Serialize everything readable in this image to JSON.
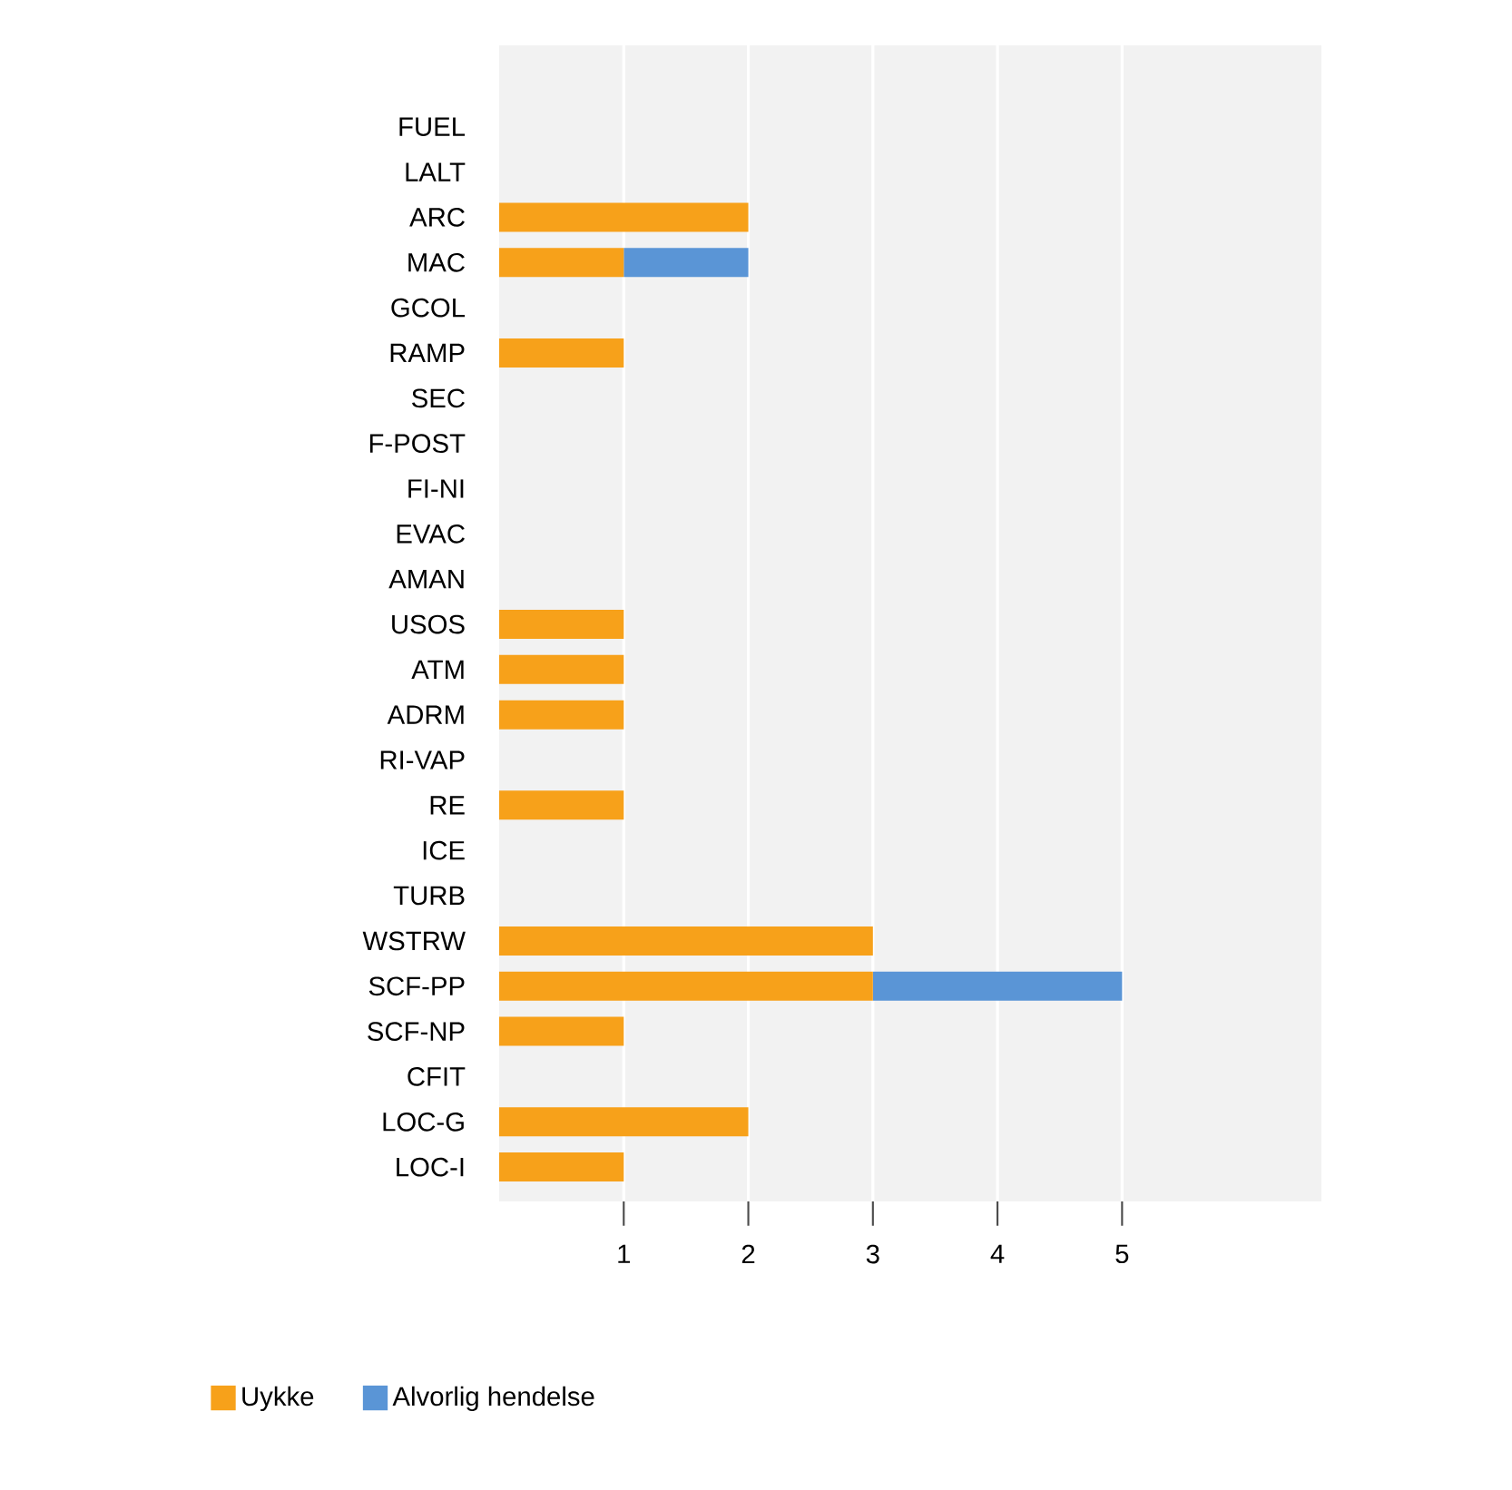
{
  "chart_data": {
    "type": "bar",
    "orientation": "horizontal",
    "stacked": true,
    "categories": [
      "FUEL",
      "LALT",
      "ARC",
      "MAC",
      "GCOL",
      "RAMP",
      "SEC",
      "F-POST",
      "FI-NI",
      "EVAC",
      "AMAN",
      "USOS",
      "ATM",
      "ADRM",
      "RI-VAP",
      "RE",
      "ICE",
      "TURB",
      "WSTRW",
      "SCF-PP",
      "SCF-NP",
      "CFIT",
      "LOC-G",
      "LOC-I"
    ],
    "series": [
      {
        "name": "Uykke",
        "color": "#f7a11a",
        "values": [
          0,
          0,
          2,
          1,
          0,
          1,
          0,
          0,
          0,
          0,
          0,
          1,
          1,
          1,
          0,
          1,
          0,
          0,
          3,
          3,
          1,
          0,
          2,
          1
        ]
      },
      {
        "name": "Alvorlig hendelse",
        "color": "#5a95d6",
        "values": [
          0,
          0,
          0,
          1,
          0,
          0,
          0,
          0,
          0,
          0,
          0,
          0,
          0,
          0,
          0,
          0,
          0,
          0,
          0,
          2,
          0,
          0,
          0,
          0
        ]
      }
    ],
    "xlim": [
      0,
      6.6
    ],
    "xticks": [
      1,
      2,
      3,
      4,
      5
    ],
    "grid": "x",
    "legend": "bottom left"
  }
}
